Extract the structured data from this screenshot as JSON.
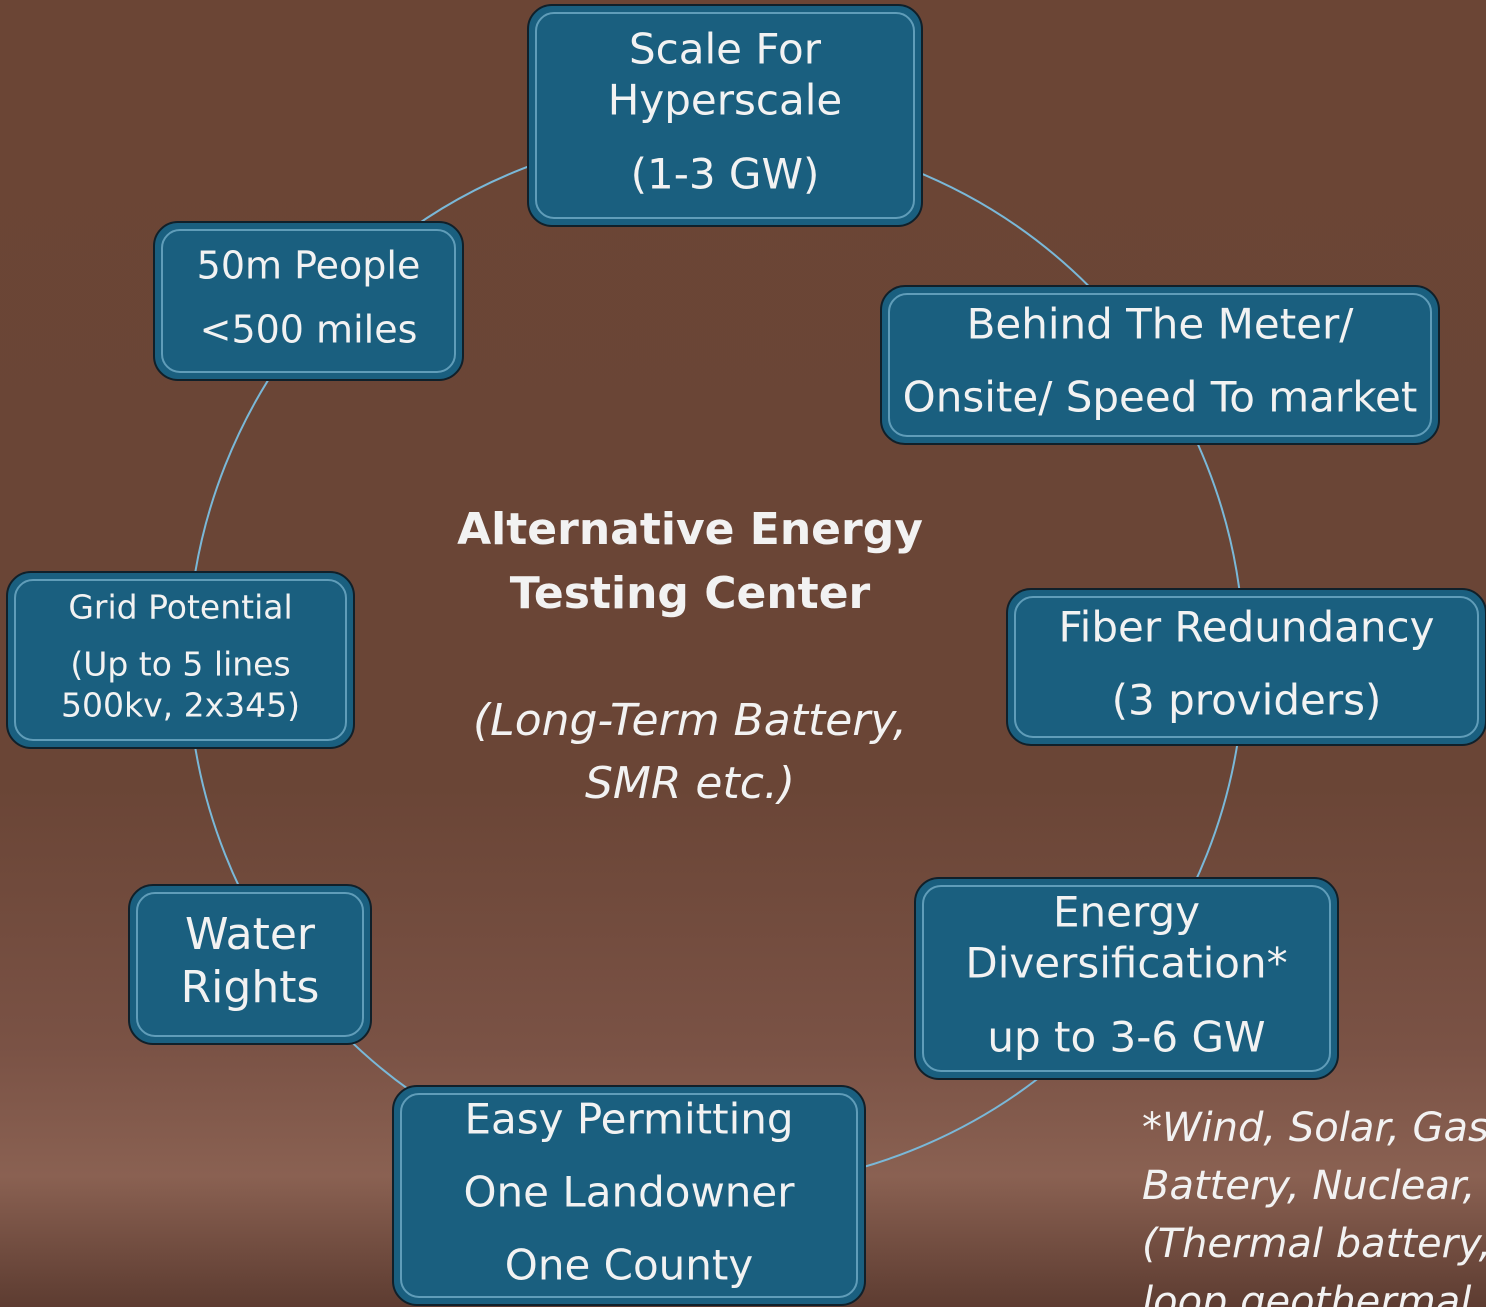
{
  "center": {
    "title_lines": [
      "Alternative Energy",
      "Testing Center"
    ],
    "subtitle_lines": [
      "(Long-Term Battery,",
      "SMR etc.)"
    ]
  },
  "nodes": [
    {
      "lines": [
        "Scale For",
        "Hyperscale",
        "(1-3 GW)"
      ]
    },
    {
      "lines": [
        "50m People",
        "<500 miles"
      ]
    },
    {
      "lines": [
        "Behind The Meter/",
        "Onsite/ Speed To market"
      ]
    },
    {
      "lines": [
        "Grid Potential",
        "(Up to 5 lines",
        "500kv, 2x345)"
      ]
    },
    {
      "lines": [
        "Fiber Redundancy",
        "(3 providers)"
      ]
    },
    {
      "lines": [
        "Water",
        "Rights"
      ]
    },
    {
      "lines": [
        "Energy",
        "Diversification*",
        "up to 3-6 GW"
      ]
    },
    {
      "lines": [
        "Easy Permitting",
        "One Landowner",
        "One County"
      ]
    }
  ],
  "footnote_lines": [
    "*Wind, Solar, Gas,",
    "Battery, Nuclear,",
    "(Thermal battery,",
    "loop geothermal"
  ]
}
